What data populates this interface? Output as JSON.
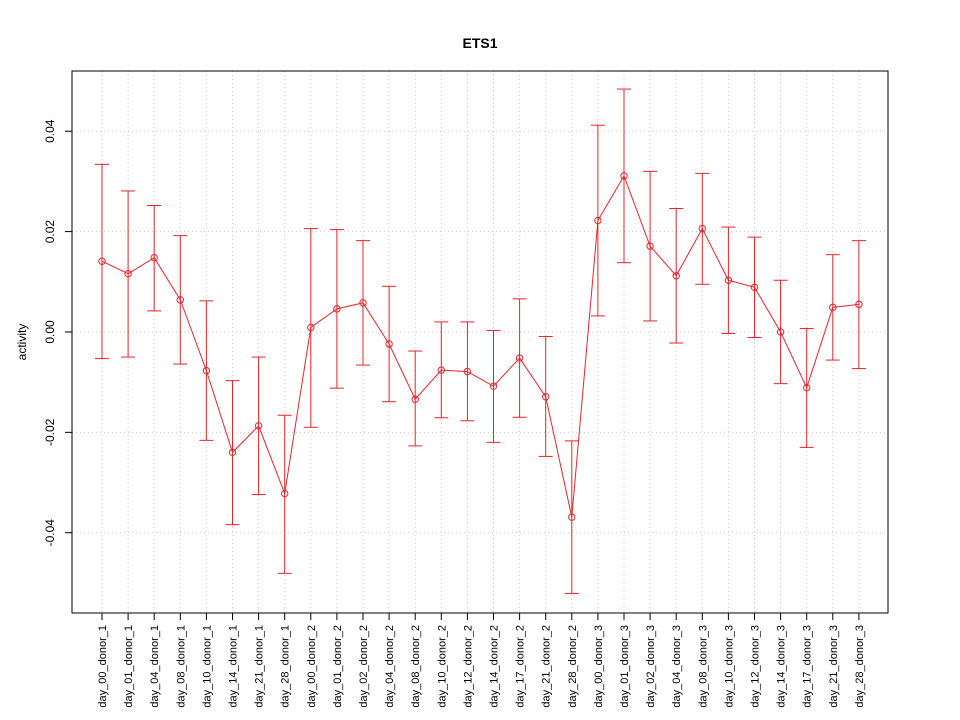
{
  "chart_data": {
    "type": "line",
    "title": "ETS1",
    "xlabel": "",
    "ylabel": "activity",
    "ylim": [
      -0.056,
      0.052
    ],
    "yticks": [
      -0.04,
      -0.02,
      0.0,
      0.02,
      0.04
    ],
    "ytick_labels": [
      "-0.04",
      "-0.02",
      "0.00",
      "0.02",
      "0.04"
    ],
    "grid": true,
    "color": "#e8242b",
    "categories": [
      "day_00_donor_1",
      "day_01_donor_1",
      "day_04_donor_1",
      "day_08_donor_1",
      "day_10_donor_1",
      "day_14_donor_1",
      "day_21_donor_1",
      "day_28_donor_1",
      "day_00_donor_2",
      "day_01_donor_2",
      "day_02_donor_2",
      "day_04_donor_2",
      "day_08_donor_2",
      "day_10_donor_2",
      "day_12_donor_2",
      "day_14_donor_2",
      "day_17_donor_2",
      "day_21_donor_2",
      "day_28_donor_2",
      "day_00_donor_3",
      "day_01_donor_3",
      "day_02_donor_3",
      "day_04_donor_3",
      "day_08_donor_3",
      "day_10_donor_3",
      "day_12_donor_3",
      "day_14_donor_3",
      "day_17_donor_3",
      "day_21_donor_3",
      "day_28_donor_3"
    ],
    "values": [
      0.0141,
      0.0116,
      0.0148,
      0.0064,
      -0.0077,
      -0.024,
      -0.0187,
      -0.0322,
      0.0009,
      0.0046,
      0.0058,
      -0.0024,
      -0.0134,
      -0.0076,
      -0.0079,
      -0.0108,
      -0.0052,
      -0.0129,
      -0.0369,
      0.0222,
      0.0311,
      0.0171,
      0.0112,
      0.0206,
      0.0103,
      0.0089,
      0.0,
      -0.0111,
      0.0049,
      0.0055
    ],
    "upper": [
      0.0334,
      0.0281,
      0.0252,
      0.0192,
      0.0062,
      -0.0097,
      -0.005,
      -0.0166,
      0.0206,
      0.0204,
      0.0182,
      0.0091,
      -0.0038,
      0.002,
      0.002,
      0.0003,
      0.0066,
      -0.0009,
      -0.0217,
      0.0412,
      0.0484,
      0.032,
      0.0246,
      0.0316,
      0.0209,
      0.0189,
      0.0103,
      0.0007,
      0.0154,
      0.0182
    ],
    "lower": [
      -0.0053,
      -0.005,
      0.0042,
      -0.0064,
      -0.0216,
      -0.0384,
      -0.0324,
      -0.0481,
      -0.019,
      -0.0112,
      -0.0066,
      -0.0139,
      -0.0227,
      -0.0171,
      -0.0177,
      -0.022,
      -0.017,
      -0.0248,
      -0.0521,
      0.0032,
      0.0138,
      0.0022,
      -0.0022,
      0.0095,
      -0.0003,
      -0.0011,
      -0.0103,
      -0.023,
      -0.0056,
      -0.0073
    ]
  }
}
